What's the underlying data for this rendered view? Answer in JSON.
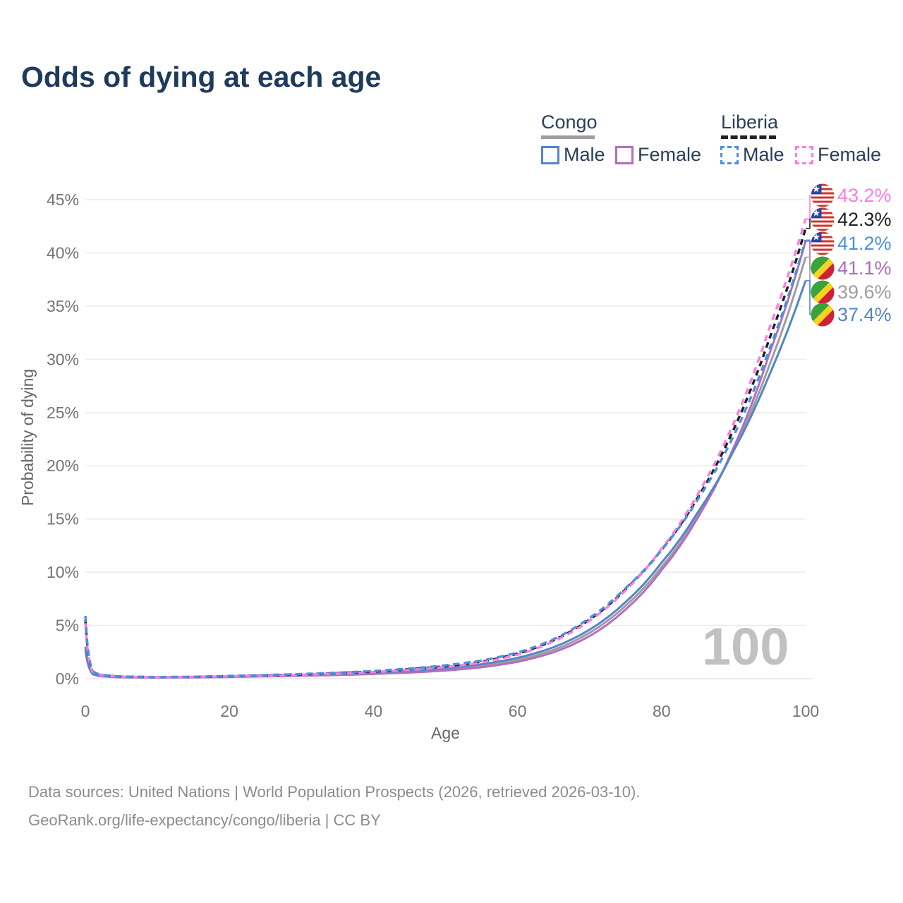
{
  "title": "Odds of dying at each age",
  "watermark": {
    "text": "100"
  },
  "legend": {
    "groups": [
      {
        "label": "Congo",
        "line_style": "solid",
        "underline_color": "#9e9e9e",
        "items": [
          {
            "label": "Male",
            "color": "#5585c8",
            "dash": false
          },
          {
            "label": "Female",
            "color": "#b56cc0",
            "dash": false
          }
        ]
      },
      {
        "label": "Liberia",
        "line_style": "dashed",
        "underline_color": "#222222",
        "items": [
          {
            "label": "Male",
            "color": "#4a90e2",
            "dash": true
          },
          {
            "label": "Female",
            "color": "#ff7ce0",
            "dash": true
          }
        ]
      }
    ]
  },
  "chart_data": {
    "type": "line",
    "title": "Odds of dying at each age",
    "xlabel": "Age",
    "ylabel": "Probability of dying",
    "xlim": [
      0,
      100
    ],
    "ylim": [
      0,
      45
    ],
    "y_unit": "%",
    "grid": "horizontal-only",
    "x_ticks": [
      "0",
      "20",
      "40",
      "60",
      "80",
      "100"
    ],
    "x_tick_values": [
      0,
      20,
      40,
      60,
      80,
      100
    ],
    "y_ticks": [
      "0%",
      "5%",
      "10%",
      "15%",
      "20%",
      "25%",
      "30%",
      "35%",
      "40%",
      "45%"
    ],
    "y_tick_values": [
      0,
      5,
      10,
      15,
      20,
      25,
      30,
      35,
      40,
      45
    ],
    "x": [
      0,
      1,
      2,
      5,
      10,
      15,
      20,
      25,
      30,
      35,
      40,
      45,
      50,
      55,
      60,
      65,
      70,
      75,
      80,
      85,
      90,
      95,
      100
    ],
    "series": [
      {
        "key": "congo_avg",
        "name": "Congo Both sexes",
        "country": "Congo",
        "sex": "Both",
        "color": "#9e9e9e",
        "dash": "solid",
        "values": [
          2.8,
          0.45,
          0.25,
          0.14,
          0.11,
          0.13,
          0.19,
          0.24,
          0.31,
          0.39,
          0.5,
          0.65,
          0.86,
          1.2,
          1.75,
          2.7,
          4.3,
          6.85,
          10.5,
          15.3,
          21.5,
          29.5,
          39.6
        ]
      },
      {
        "key": "congo_female",
        "name": "Congo Female",
        "country": "Congo",
        "sex": "Female",
        "color": "#b56cc0",
        "dash": "solid",
        "values": [
          2.6,
          0.42,
          0.23,
          0.13,
          0.1,
          0.12,
          0.16,
          0.21,
          0.27,
          0.34,
          0.44,
          0.57,
          0.76,
          1.07,
          1.58,
          2.48,
          4.0,
          6.5,
          10.2,
          15.1,
          21.7,
          30.6,
          41.1
        ]
      },
      {
        "key": "congo_male",
        "name": "Congo Male",
        "country": "Congo",
        "sex": "Male",
        "color": "#5585c8",
        "dash": "solid",
        "values": [
          3.0,
          0.48,
          0.27,
          0.15,
          0.12,
          0.15,
          0.22,
          0.28,
          0.36,
          0.46,
          0.58,
          0.74,
          0.97,
          1.35,
          1.95,
          2.95,
          4.6,
          7.2,
          10.9,
          15.6,
          21.4,
          28.6,
          37.4
        ]
      },
      {
        "key": "liberia_avg",
        "name": "Liberia Both sexes",
        "country": "Liberia",
        "sex": "Both",
        "color": "#1f1f1f",
        "dash": "dashed",
        "values": [
          5.5,
          0.66,
          0.36,
          0.19,
          0.14,
          0.17,
          0.24,
          0.31,
          0.4,
          0.52,
          0.67,
          0.88,
          1.17,
          1.6,
          2.35,
          3.6,
          5.55,
          8.4,
          12.1,
          17.0,
          23.4,
          32.0,
          42.3
        ]
      },
      {
        "key": "liberia_female",
        "name": "Liberia Female",
        "country": "Liberia",
        "sex": "Female",
        "color": "#ff7ce0",
        "dash": "dashed",
        "values": [
          5.2,
          0.62,
          0.34,
          0.18,
          0.13,
          0.16,
          0.22,
          0.28,
          0.37,
          0.48,
          0.62,
          0.82,
          1.1,
          1.52,
          2.25,
          3.5,
          5.45,
          8.3,
          12.2,
          17.3,
          24.0,
          33.0,
          43.2
        ]
      },
      {
        "key": "liberia_male",
        "name": "Liberia Male",
        "country": "Liberia",
        "sex": "Male",
        "color": "#4a90e2",
        "dash": "dashed",
        "values": [
          5.9,
          0.7,
          0.38,
          0.2,
          0.15,
          0.18,
          0.26,
          0.34,
          0.44,
          0.56,
          0.72,
          0.95,
          1.25,
          1.7,
          2.45,
          3.7,
          5.7,
          8.5,
          12.1,
          16.8,
          22.8,
          31.0,
          41.2
        ]
      }
    ],
    "end_labels": [
      {
        "text": "43.2%",
        "value": 43.2,
        "series": "liberia_female",
        "flag": "liberia",
        "color": "#ff7ce0"
      },
      {
        "text": "42.3%",
        "value": 42.3,
        "series": "liberia_avg",
        "flag": "liberia",
        "color": "#1f1f1f"
      },
      {
        "text": "41.2%",
        "value": 41.2,
        "series": "liberia_male",
        "flag": "liberia",
        "color": "#4a90e2"
      },
      {
        "text": "41.1%",
        "value": 41.1,
        "series": "congo_female",
        "flag": "congo",
        "color": "#ad6cba"
      },
      {
        "text": "39.6%",
        "value": 39.6,
        "series": "congo_avg",
        "flag": "congo",
        "color": "#9e9e9e"
      },
      {
        "text": "37.4%",
        "value": 37.4,
        "series": "congo_male",
        "flag": "congo",
        "color": "#5585c8"
      }
    ],
    "flag_colors": {
      "liberia": {
        "red": "#d0342c",
        "white": "#ffffff",
        "blue": "#2a47a0"
      },
      "congo": {
        "green": "#3aa33a",
        "yellow": "#f7d21e",
        "red": "#cf2035"
      }
    }
  },
  "footer": {
    "line1": "Data sources: United Nations | World Population Prospects (2026, retrieved 2026-03-10).",
    "line2": "GeoRank.org/life-expectancy/congo/liberia | CC BY"
  }
}
